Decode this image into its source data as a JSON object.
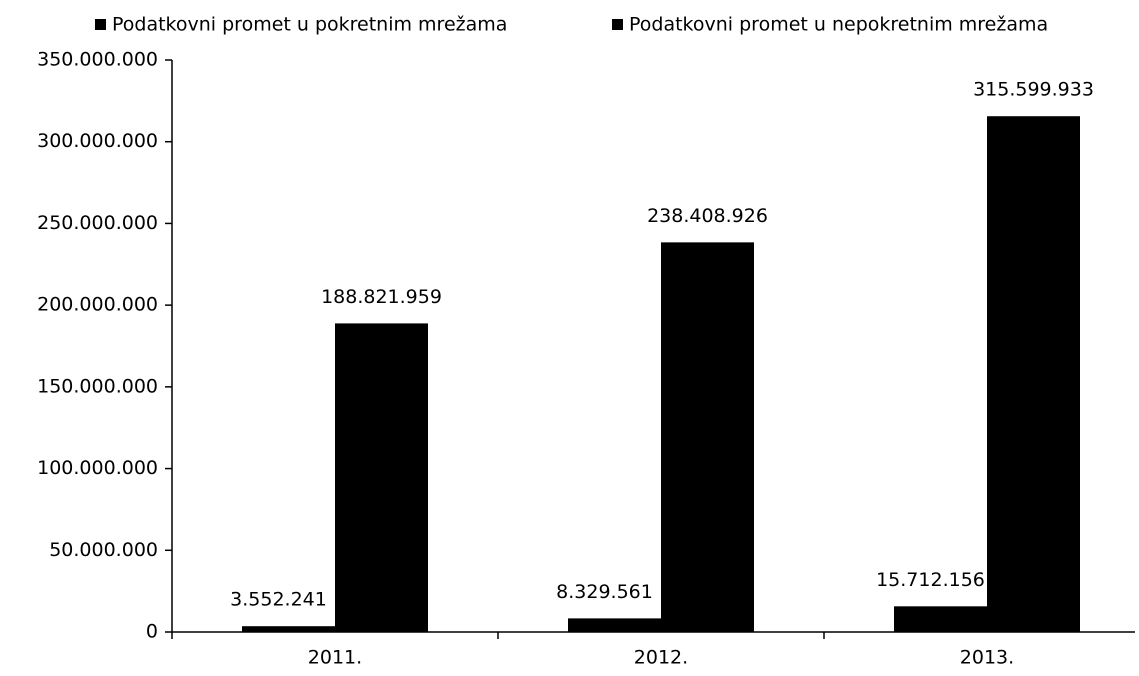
{
  "chart_data": {
    "type": "bar",
    "categories": [
      "2011.",
      "2012.",
      "2013."
    ],
    "series": [
      {
        "name": "Podatkovni promet u pokretnim mrežama",
        "color": "#000000",
        "values": [
          3552241,
          8329561,
          15712156
        ],
        "value_labels": [
          "3.552.241",
          "8.329.561",
          "15.712.156"
        ]
      },
      {
        "name": "Podatkovni promet u nepokretnim mrežama",
        "color": "#000000",
        "values": [
          188821959,
          238408926,
          315599933
        ],
        "value_labels": [
          "188.821.959",
          "238.408.926",
          "315.599.933"
        ]
      }
    ],
    "ylim": [
      0,
      350000000
    ],
    "yticks": [
      0,
      {
        "value": 50000000,
        "label": "50.000.000"
      },
      {
        "value": 100000000,
        "label": "100.000.000"
      },
      {
        "value": 150000000,
        "label": "150.000.000"
      },
      {
        "value": 200000000,
        "label": "200.000.000"
      },
      {
        "value": 250000000,
        "label": "250.000.000"
      },
      {
        "value": 300000000,
        "label": "300.000.000"
      },
      {
        "value": 350000000,
        "label": "350.000.000"
      }
    ],
    "legend": "top",
    "grid": false
  }
}
